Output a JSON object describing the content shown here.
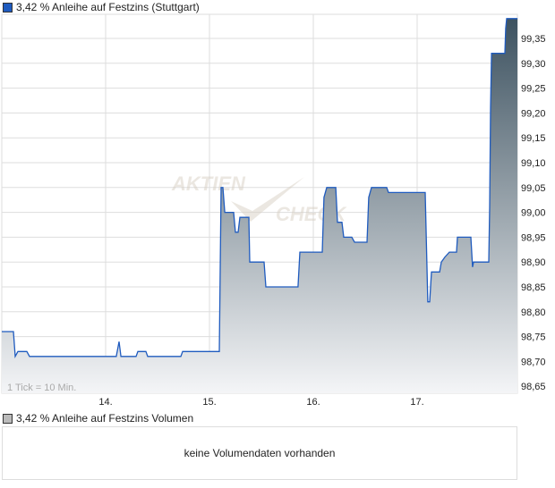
{
  "legend_price": "3,42 % Anleihe auf Festzins (Stuttgart)",
  "legend_volume": "3,42 % Anleihe auf Festzins Volumen",
  "tick_note": "1 Tick = 10 Min.",
  "volume_message": "keine Volumendaten vorhanden",
  "watermark": "AKTIEN CHECK",
  "colors": {
    "line": "#1f5bbf",
    "fill_top": "#3d5260",
    "fill_bottom": "#f4f5f7",
    "grid": "#dddddd",
    "price_legend": "#1f5bbf",
    "volume_legend": "#bbbbbb"
  },
  "chart_data": {
    "type": "area",
    "x_axis": {
      "ticks": [
        14,
        15,
        16,
        17
      ],
      "tick_labels": [
        "14.",
        "15.",
        "16.",
        "17."
      ],
      "range": [
        13.0,
        17.966
      ]
    },
    "y_axis": {
      "position": "right",
      "range": [
        98.635,
        99.41
      ],
      "ticks": [
        98.65,
        98.7,
        98.75,
        98.8,
        98.85,
        98.9,
        98.95,
        99.0,
        99.05,
        99.1,
        99.15,
        99.2,
        99.25,
        99.3,
        99.35
      ],
      "tick_labels": [
        "98,65",
        "98,70",
        "98,75",
        "98,80",
        "98,85",
        "98,90",
        "98,95",
        "99,00",
        "99,05",
        "99,10",
        "99,15",
        "99,20",
        "99,25",
        "99,30",
        "99,35"
      ]
    },
    "grid": true,
    "points": [
      [
        13.0,
        98.76
      ],
      [
        13.112,
        98.76
      ],
      [
        13.129,
        98.71
      ],
      [
        13.155,
        98.72
      ],
      [
        13.241,
        98.72
      ],
      [
        13.267,
        98.71
      ],
      [
        14.103,
        98.71
      ],
      [
        14.129,
        98.74
      ],
      [
        14.147,
        98.71
      ],
      [
        14.293,
        98.71
      ],
      [
        14.31,
        98.72
      ],
      [
        14.388,
        98.72
      ],
      [
        14.405,
        98.71
      ],
      [
        14.724,
        98.71
      ],
      [
        14.741,
        98.72
      ],
      [
        15.095,
        98.72
      ],
      [
        15.112,
        99.05
      ],
      [
        15.129,
        99.05
      ],
      [
        15.147,
        99.0
      ],
      [
        15.233,
        99.0
      ],
      [
        15.25,
        98.96
      ],
      [
        15.276,
        98.96
      ],
      [
        15.293,
        98.99
      ],
      [
        15.379,
        98.99
      ],
      [
        15.388,
        98.9
      ],
      [
        15.526,
        98.9
      ],
      [
        15.543,
        98.85
      ],
      [
        15.853,
        98.85
      ],
      [
        15.871,
        98.92
      ],
      [
        16.086,
        98.92
      ],
      [
        16.103,
        99.03
      ],
      [
        16.129,
        99.05
      ],
      [
        16.216,
        99.05
      ],
      [
        16.233,
        98.98
      ],
      [
        16.276,
        98.98
      ],
      [
        16.293,
        98.95
      ],
      [
        16.371,
        98.95
      ],
      [
        16.397,
        98.94
      ],
      [
        16.517,
        98.94
      ],
      [
        16.534,
        99.03
      ],
      [
        16.56,
        99.05
      ],
      [
        16.707,
        99.05
      ],
      [
        16.724,
        99.04
      ],
      [
        17.078,
        99.04
      ],
      [
        17.103,
        98.82
      ],
      [
        17.121,
        98.82
      ],
      [
        17.138,
        98.88
      ],
      [
        17.216,
        98.88
      ],
      [
        17.233,
        98.9
      ],
      [
        17.267,
        98.91
      ],
      [
        17.31,
        98.92
      ],
      [
        17.379,
        98.92
      ],
      [
        17.388,
        98.95
      ],
      [
        17.517,
        98.95
      ],
      [
        17.534,
        98.89
      ],
      [
        17.543,
        98.9
      ],
      [
        17.69,
        98.9
      ],
      [
        17.698,
        99.01
      ],
      [
        17.707,
        99.21
      ],
      [
        17.716,
        99.32
      ],
      [
        17.845,
        99.32
      ],
      [
        17.853,
        99.37
      ],
      [
        17.862,
        99.39
      ],
      [
        17.966,
        99.39
      ]
    ]
  }
}
